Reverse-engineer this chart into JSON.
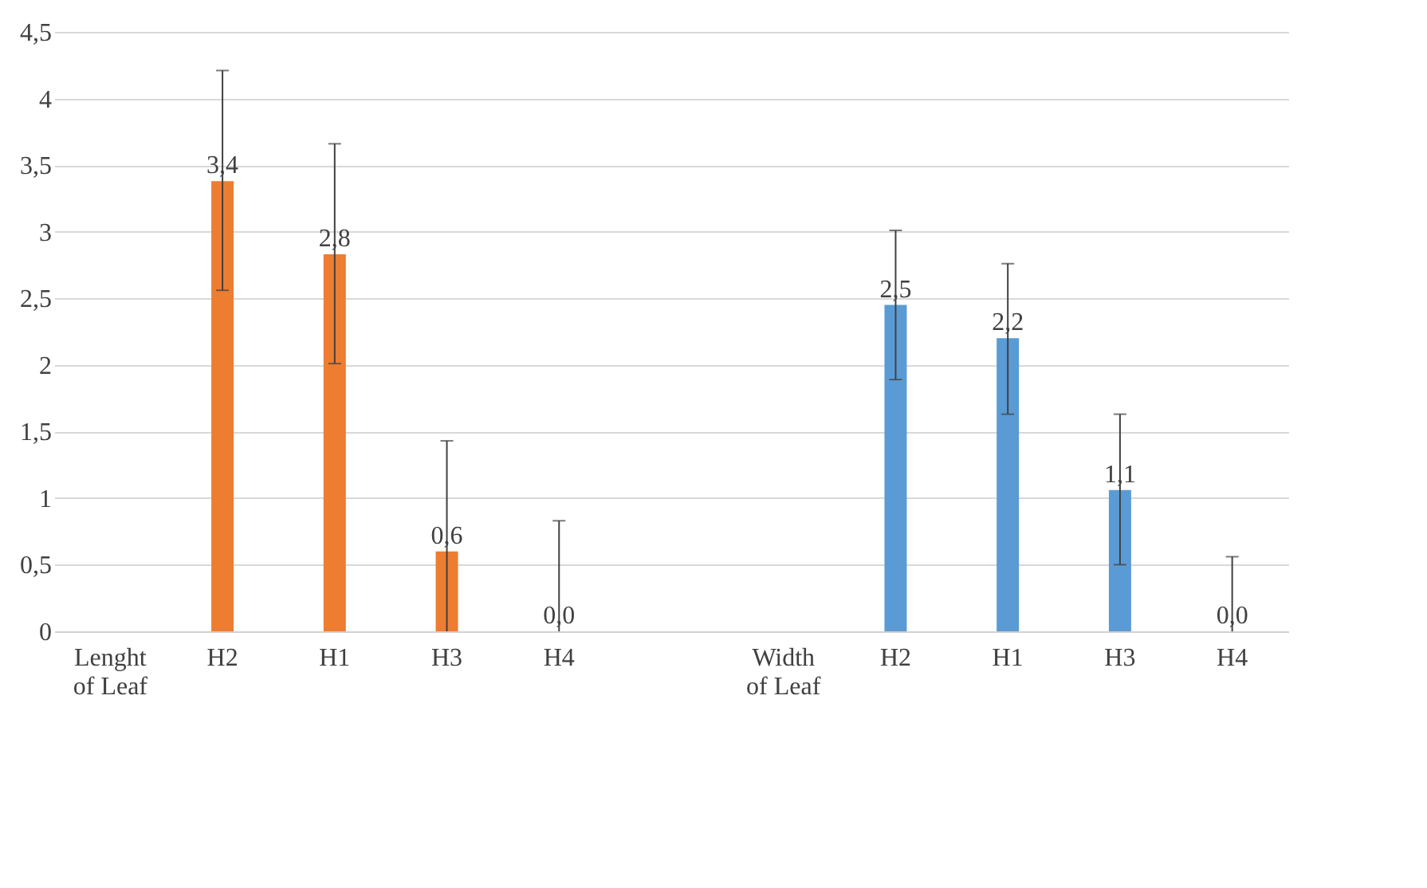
{
  "chart_data": {
    "type": "bar",
    "categories": [
      "Lenght of Leaf",
      "H2",
      "H1",
      "H3",
      "H4",
      null,
      "Width of Leaf",
      "H2",
      "H1",
      "H3",
      "H4"
    ],
    "series": [
      {
        "color": "#ed7d31",
        "values": [
          null,
          3.38,
          2.83,
          0.6,
          0.0,
          null,
          null,
          null,
          null,
          null,
          null
        ],
        "value_labels": [
          null,
          "3,4",
          "2,8",
          "0,6",
          "0,0",
          null,
          null,
          null,
          null,
          null,
          null
        ],
        "errors": [
          null,
          [
            2.56,
            4.21
          ],
          [
            2.01,
            3.66
          ],
          [
            0,
            1.43
          ],
          [
            0,
            0.83
          ],
          null,
          null,
          null,
          null,
          null,
          null
        ]
      },
      {
        "color": "#5b9bd5",
        "values": [
          null,
          null,
          null,
          null,
          null,
          null,
          null,
          2.45,
          2.2,
          1.06,
          0.0
        ],
        "value_labels": [
          null,
          null,
          null,
          null,
          null,
          null,
          null,
          "2,5",
          "2,2",
          "1,1",
          "0,0"
        ],
        "errors": [
          null,
          null,
          null,
          null,
          null,
          null,
          null,
          [
            1.89,
            3.01
          ],
          [
            1.63,
            2.76
          ],
          [
            0.5,
            1.63
          ],
          [
            0,
            0.56
          ]
        ]
      }
    ],
    "ylim": [
      0,
      4.5
    ],
    "yticks": [
      0,
      {
        "value": 0.5,
        "label": "0,5"
      },
      1,
      {
        "value": 1.5,
        "label": "1,5"
      },
      2,
      {
        "value": 2.5,
        "label": "2,5"
      },
      3,
      {
        "value": 3.5,
        "label": "3,5"
      },
      4,
      {
        "value": 4.5,
        "label": "4,5"
      }
    ],
    "grid": "y",
    "legend": false
  }
}
